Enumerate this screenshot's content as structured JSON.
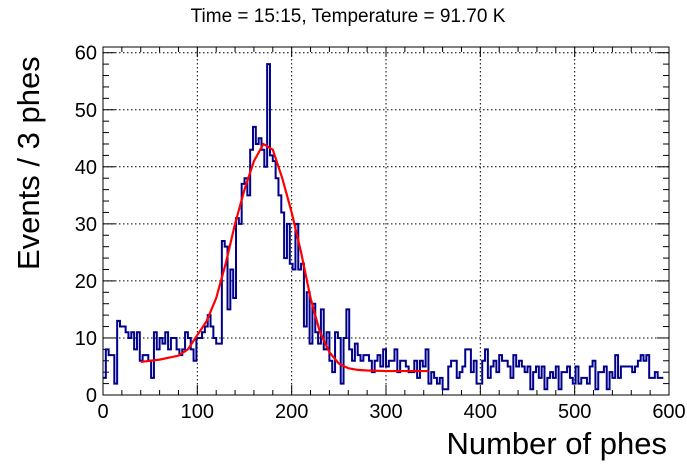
{
  "chart_data": {
    "type": "histogram",
    "title": "Time = 15:15, Temperature = 91.70 K",
    "xlabel": "Number of phes",
    "ylabel": "Events / 3 phes",
    "xlim": [
      0,
      600
    ],
    "ylim": [
      0,
      61
    ],
    "bin_width": 3,
    "grid": true,
    "x_ticks": [
      "0",
      "100",
      "200",
      "300",
      "400",
      "500",
      "600"
    ],
    "y_ticks": [
      "0",
      "10",
      "20",
      "30",
      "40",
      "50",
      "60"
    ],
    "series": [
      {
        "kind": "histogram",
        "color": "#00008b",
        "values": [
          3,
          8,
          7,
          7,
          2,
          13,
          12,
          12,
          11,
          10,
          11,
          8,
          11,
          6,
          7,
          7,
          6,
          3,
          11,
          8,
          10,
          9,
          11,
          8,
          10,
          10,
          8,
          7,
          8,
          11,
          10,
          8,
          6,
          10,
          10,
          11,
          12,
          14,
          12,
          10,
          9,
          9,
          27,
          26,
          15,
          22,
          17,
          31,
          30,
          37,
          38,
          35,
          43,
          47,
          44,
          45,
          43,
          40,
          58,
          42,
          41,
          38,
          35,
          32,
          24,
          30,
          23,
          22,
          30,
          22,
          23,
          12,
          18,
          9,
          16,
          11,
          9,
          15,
          8,
          11,
          6,
          4,
          11,
          10,
          2,
          10,
          15,
          8,
          6,
          9,
          7,
          6,
          7,
          7,
          6,
          4,
          6,
          7,
          5,
          8,
          5,
          6,
          6,
          8,
          4,
          6,
          6,
          5,
          4,
          4,
          6,
          3,
          6,
          5,
          8,
          2,
          4,
          3,
          2,
          3,
          1,
          1,
          5,
          6,
          6,
          3,
          4,
          5,
          8,
          8,
          4,
          6,
          2,
          2,
          6,
          8,
          3,
          5,
          6,
          4,
          7,
          6,
          6,
          5,
          3,
          7,
          5,
          6,
          5,
          4,
          5,
          1,
          4,
          5,
          3,
          5,
          1,
          3,
          4,
          3,
          5,
          1,
          4,
          4,
          5,
          3,
          2,
          5,
          2,
          3,
          3,
          2,
          5,
          6,
          1,
          4,
          4,
          5,
          1,
          4,
          3,
          7,
          3,
          5,
          5,
          5,
          5,
          4,
          5,
          6,
          7,
          6,
          7,
          3,
          3,
          4,
          3,
          3
        ]
      },
      {
        "kind": "fit",
        "color": "#ff0000",
        "x_range": [
          40,
          345
        ],
        "fit_x": [
          40,
          60,
          80,
          90,
          100,
          110,
          120,
          130,
          140,
          150,
          160,
          170,
          180,
          190,
          200,
          210,
          220,
          230,
          240,
          250,
          260,
          270,
          280,
          300,
          320,
          345
        ],
        "fit_y": [
          5.8,
          6.2,
          6.9,
          8.0,
          10.5,
          13.0,
          17.0,
          23.0,
          30.0,
          36.0,
          41.0,
          44.0,
          43.0,
          38.0,
          32.0,
          25.0,
          17.0,
          11.0,
          7.5,
          5.5,
          4.7,
          4.4,
          4.3,
          4.2,
          4.2,
          4.2
        ]
      }
    ]
  }
}
